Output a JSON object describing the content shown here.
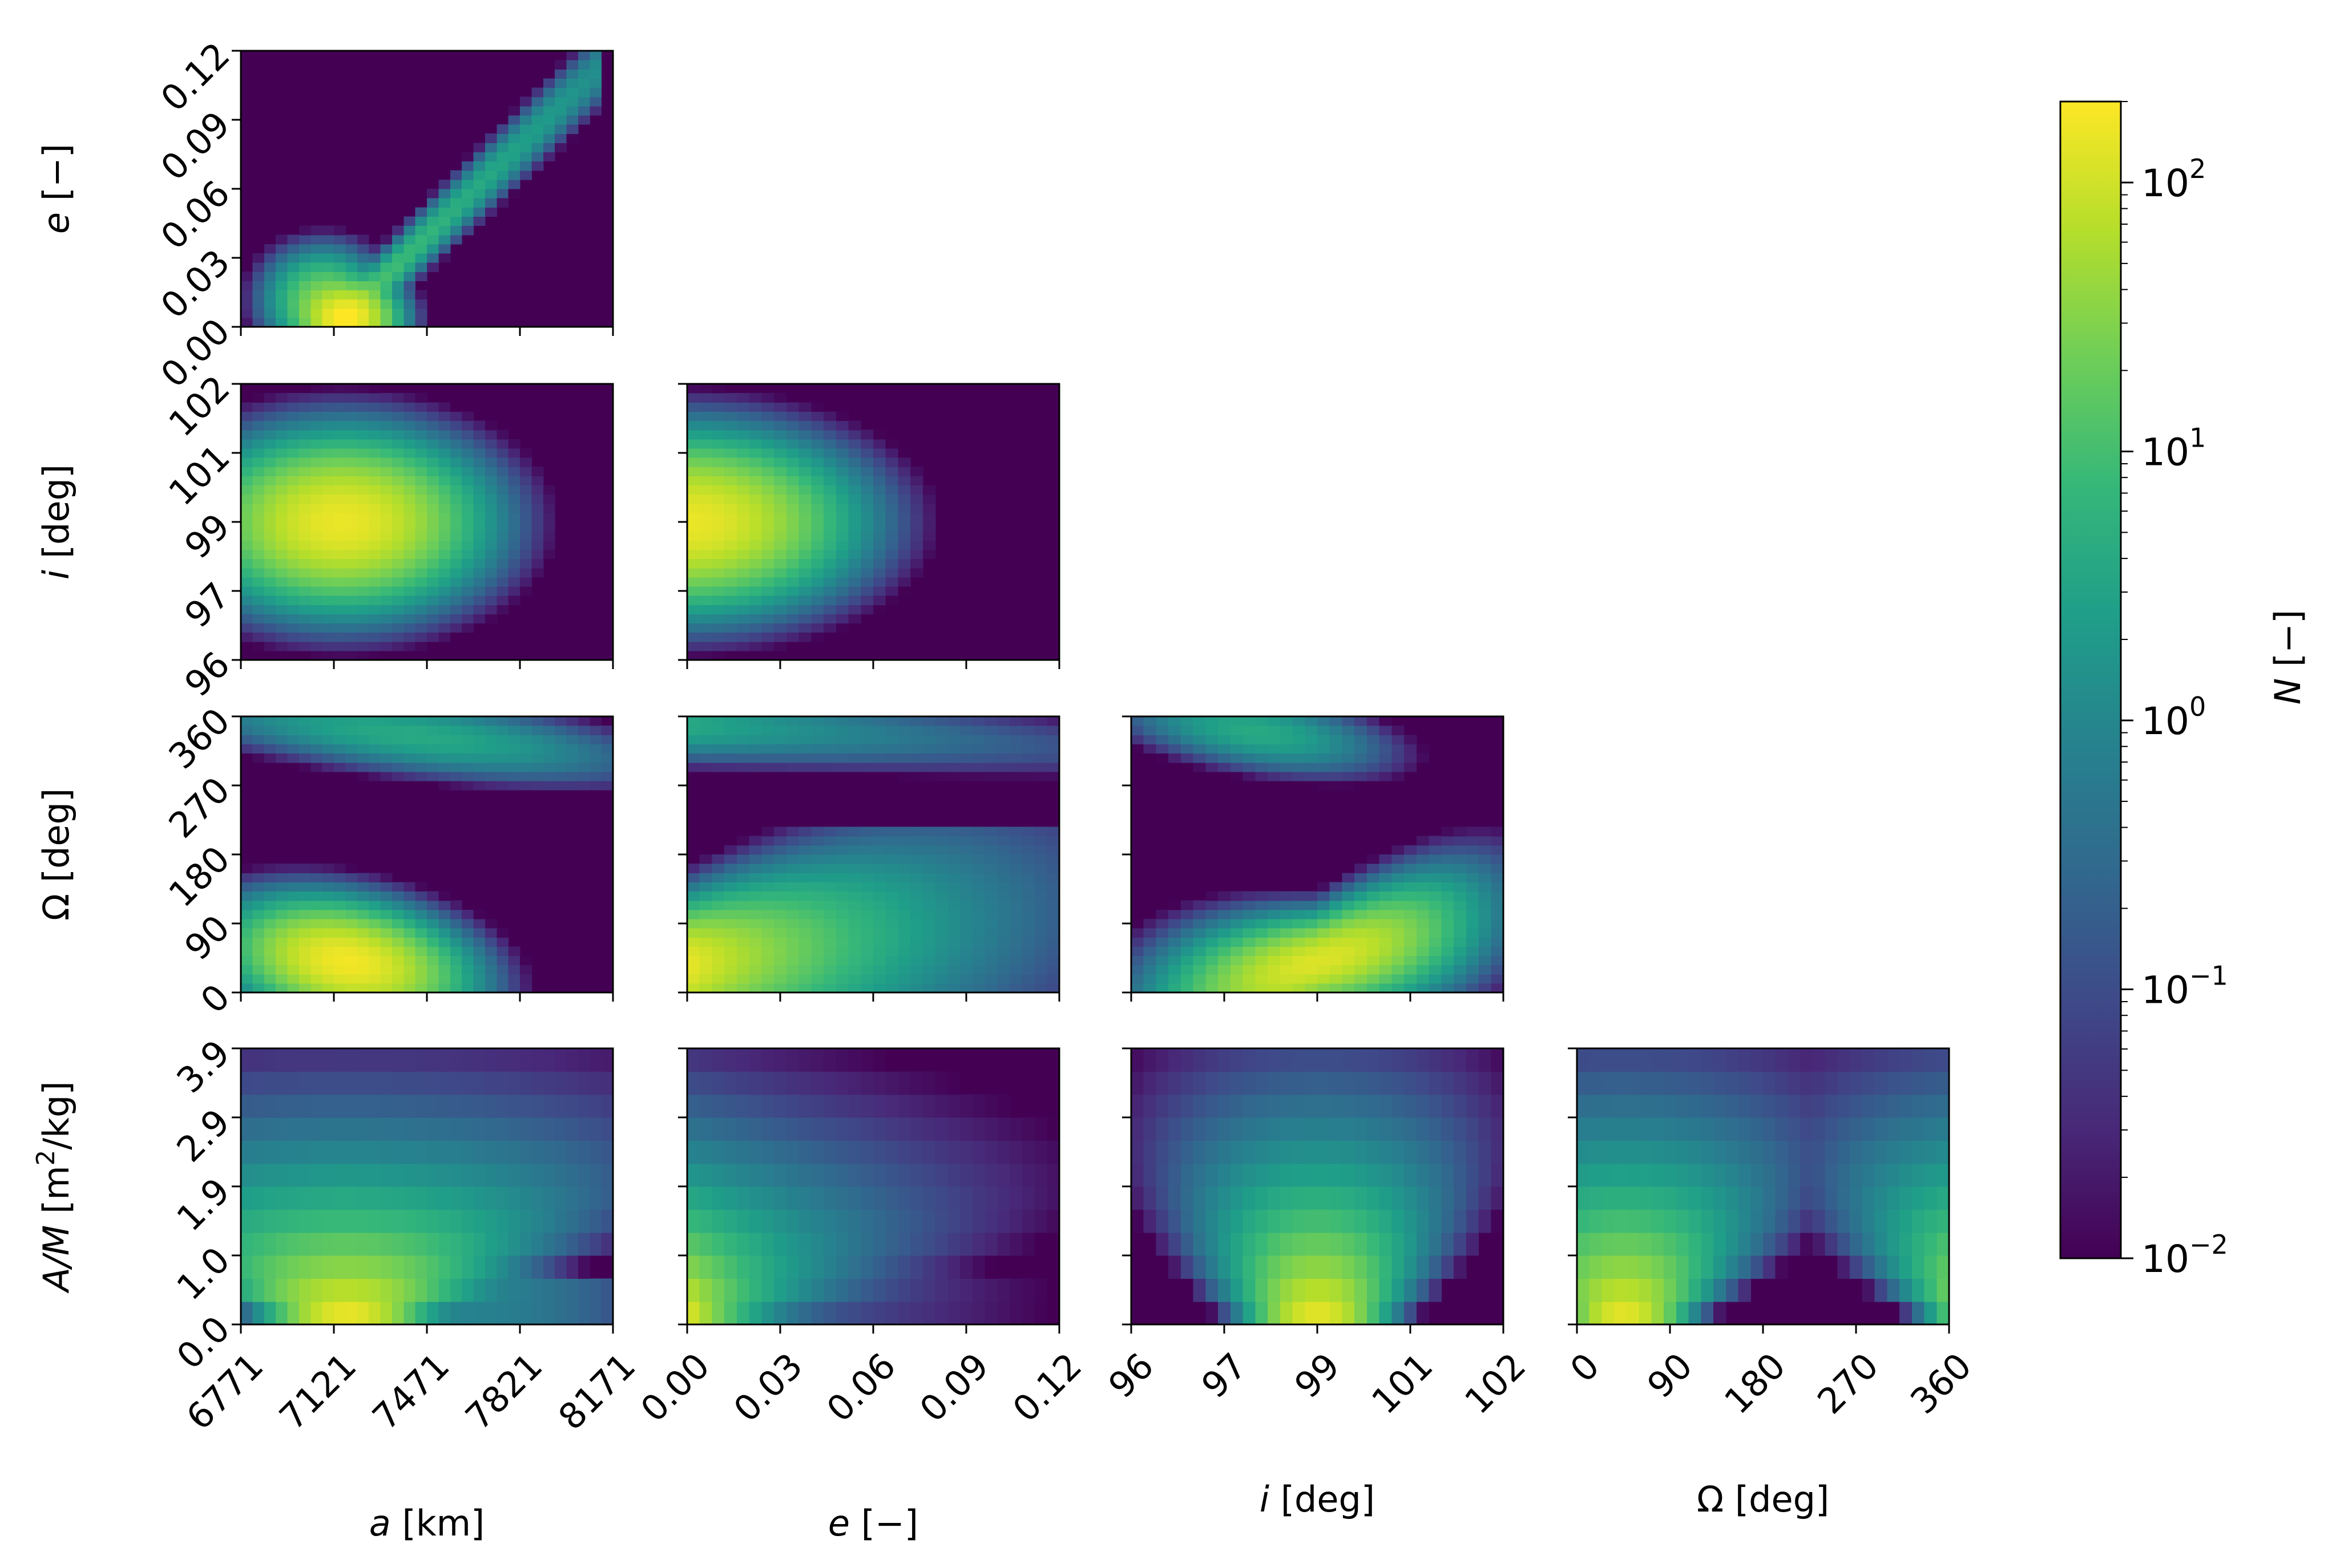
{
  "figure": {
    "type": "corner-plot",
    "colormap": "viridis",
    "colorbar": {
      "label": "N [−]",
      "label_italic": "N",
      "label_rest": " [−]",
      "scale": "log",
      "range": [
        0.01,
        200
      ],
      "tick_values": [
        0.01,
        0.1,
        1,
        10,
        100
      ],
      "ticks": [
        {
          "base": "10",
          "exp": "−2"
        },
        {
          "base": "10",
          "exp": "−1"
        },
        {
          "base": "10",
          "exp": "0"
        },
        {
          "base": "10",
          "exp": "1"
        },
        {
          "base": "10",
          "exp": "2"
        }
      ]
    },
    "variables": [
      {
        "key": "a",
        "italic": "a",
        "unit": " [km]",
        "ticks": [
          "6771",
          "7121",
          "7471",
          "7821",
          "8171"
        ],
        "range": [
          6771,
          8171
        ]
      },
      {
        "key": "e",
        "italic": "e",
        "unit": " [−]",
        "ticks": [
          "0.00",
          "0.03",
          "0.06",
          "0.09",
          "0.12"
        ],
        "range": [
          0,
          0.12
        ]
      },
      {
        "key": "i",
        "italic": "i",
        "unit": " [deg]",
        "ticks": [
          "96",
          "97",
          "99",
          "101",
          "102"
        ],
        "range": [
          96,
          102
        ]
      },
      {
        "key": "Omega",
        "italic": "",
        "plain": "Ω",
        "unit": " [deg]",
        "ticks": [
          "0",
          "90",
          "180",
          "270",
          "360"
        ],
        "range": [
          0,
          360
        ]
      },
      {
        "key": "AM",
        "italic": "A/M",
        "unit": " [m²/kg]",
        "unit_pre": " [m",
        "unit_sup": "2",
        "unit_post": "/kg]",
        "ticks": [
          "0.0",
          "1.0",
          "1.9",
          "2.9",
          "3.9"
        ],
        "range": [
          0,
          3.9
        ]
      }
    ]
  },
  "chart_data": [
    {
      "type": "heatmap",
      "x": "a",
      "y": "e",
      "bins": [
        32,
        30
      ],
      "scale": "log",
      "peak": "≈200 near a≈7150 km, e≈0.005",
      "description": "narrow ridge rising from (7100, 0) to (8100, 0.11)"
    },
    {
      "type": "heatmap",
      "x": "a",
      "y": "i",
      "bins": [
        32,
        30
      ],
      "scale": "log",
      "peak": "≈150 near a≈7150 km, i≈99 deg",
      "description": "elliptical blob spanning a 6800–8100, i 96.5–101.8"
    },
    {
      "type": "heatmap",
      "x": "e",
      "y": "i",
      "bins": [
        30,
        30
      ],
      "scale": "log",
      "peak": "≈150 near e≈0.005, i≈99 deg",
      "description": "half-ellipse from e=0 to e≈0.09"
    },
    {
      "type": "heatmap",
      "x": "a",
      "y": "Omega",
      "bins": [
        32,
        30
      ],
      "scale": "log",
      "peak": "≈170 near a≈7150 km, Ω≈40 deg",
      "description": "lower lobe decreasing with a; upper lobe near Ω≈340 deg"
    },
    {
      "type": "heatmap",
      "x": "e",
      "y": "Omega",
      "bins": [
        30,
        30
      ],
      "scale": "log",
      "peak": "≈150 near e≈0.005, Ω≈40 deg",
      "description": "lower lobe and upper band near Ω≈350 deg"
    },
    {
      "type": "heatmap",
      "x": "i",
      "y": "Omega",
      "bins": [
        30,
        30
      ],
      "scale": "log",
      "peak": "≈120 near i≈99 deg, Ω≈45 deg",
      "description": "rising lobe bottom-right; upper lobe near Ω≈340 deg at low i"
    },
    {
      "type": "heatmap",
      "x": "a",
      "y": "AM",
      "bins": [
        32,
        12
      ],
      "scale": "log",
      "peak": "≈200 near a≈7150 km, A/M≈0.2",
      "description": "triangular spread narrowing with A/M"
    },
    {
      "type": "heatmap",
      "x": "e",
      "y": "AM",
      "bins": [
        30,
        12
      ],
      "scale": "log",
      "peak": "≈200 near e≈0.005, A/M≈0.2",
      "description": "triangle decreasing in e with A/M"
    },
    {
      "type": "heatmap",
      "x": "i",
      "y": "AM",
      "bins": [
        30,
        12
      ],
      "scale": "log",
      "peak": "≈180 near i≈99 deg, A/M≈0.2",
      "description": "pyramid centred at i≈99 deg"
    },
    {
      "type": "heatmap",
      "x": "Omega",
      "y": "AM",
      "bins": [
        30,
        12
      ],
      "scale": "log",
      "peak": "≈180 near Ω≈45 deg, A/M≈0.2",
      "description": "two diagonal bands wrapping around Ω=0/360"
    }
  ]
}
